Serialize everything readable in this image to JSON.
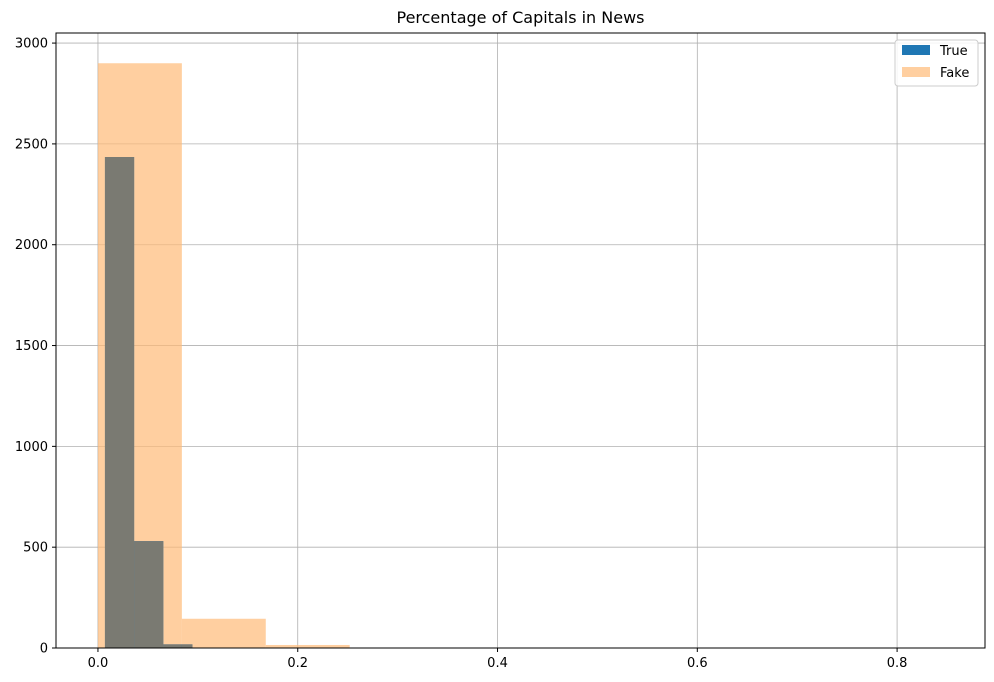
{
  "chart_data": {
    "type": "bar",
    "title": "Percentage of Capitals in News",
    "xlabel": "",
    "ylabel": "",
    "xlim": [
      -0.042,
      0.888
    ],
    "ylim": [
      0,
      3050
    ],
    "xticks": [
      0.0,
      0.2,
      0.4,
      0.6,
      0.8
    ],
    "xtick_labels": [
      "0.0",
      "0.2",
      "0.4",
      "0.6",
      "0.8"
    ],
    "yticks": [
      0,
      500,
      1000,
      1500,
      2000,
      2500,
      3000
    ],
    "ytick_labels": [
      "0",
      "500",
      "1000",
      "1500",
      "2000",
      "2500",
      "3000"
    ],
    "grid": true,
    "legend_position": "top-right",
    "legend": [
      "True",
      "Fake"
    ],
    "series": [
      {
        "name": "True",
        "color": "#1f77b4",
        "bin_edges": [
          0.007,
          0.0362,
          0.0654,
          0.0946
        ],
        "values": [
          2435,
          530,
          18
        ]
      },
      {
        "name": "Fake",
        "color": "#ffbb78",
        "alpha": 0.7,
        "bin_edges": [
          0.0,
          0.084,
          0.168,
          0.252
        ],
        "values": [
          2900,
          145,
          15
        ]
      }
    ],
    "overlap_color": "#7a7a72"
  }
}
